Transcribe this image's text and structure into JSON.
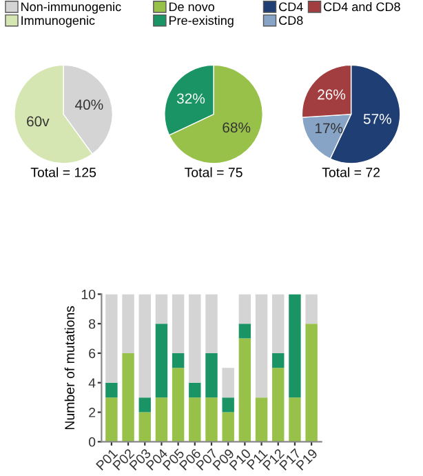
{
  "chart_data": [
    {
      "type": "pie",
      "xlabel": "Total = 125",
      "categories": [
        "Non-immunogenic",
        "Immunogenic"
      ],
      "values": [
        40,
        60
      ],
      "colors": [
        "#d4d4d4",
        "#d6e6b3"
      ],
      "value_labels": [
        "40%",
        "60v"
      ],
      "legend": "top"
    },
    {
      "type": "pie",
      "xlabel": "Total = 75",
      "categories": [
        "De novo",
        "Pre-existing"
      ],
      "values": [
        68,
        32
      ],
      "colors": [
        "#98c14a",
        "#1a9464"
      ],
      "value_labels": [
        "68%",
        "32%"
      ],
      "legend": "top"
    },
    {
      "type": "pie",
      "xlabel": "Total = 72",
      "categories": [
        "CD4",
        "CD8",
        "CD4 and CD8"
      ],
      "values": [
        57,
        17,
        26
      ],
      "colors": [
        "#1f3e73",
        "#87a3c6",
        "#a33e40"
      ],
      "value_labels": [
        "57%",
        "17%",
        "26%"
      ],
      "legend": "top"
    },
    {
      "type": "bar",
      "stacked": true,
      "ylabel": "Number of mutations",
      "categories": [
        "P01",
        "P02",
        "P03",
        "P04",
        "P05",
        "P06",
        "P07",
        "P09",
        "P10",
        "P11",
        "P12",
        "P17",
        "P19"
      ],
      "ylim": [
        0,
        10
      ],
      "yticks": [
        0,
        2,
        4,
        6,
        8,
        10
      ],
      "grid": false,
      "legend": false,
      "series": [
        {
          "color": "#98c14a",
          "values": [
            3,
            6,
            2,
            3,
            5,
            3,
            3,
            2,
            7,
            3,
            5,
            3,
            8
          ]
        },
        {
          "color": "#1a9464",
          "values": [
            1,
            0,
            1,
            5,
            1,
            1,
            3,
            1,
            1,
            0,
            1,
            7,
            0
          ]
        },
        {
          "color": "#d4d4d4",
          "values": [
            6,
            4,
            7,
            2,
            4,
            6,
            4,
            2,
            2,
            7,
            4,
            0,
            2
          ]
        }
      ]
    }
  ]
}
